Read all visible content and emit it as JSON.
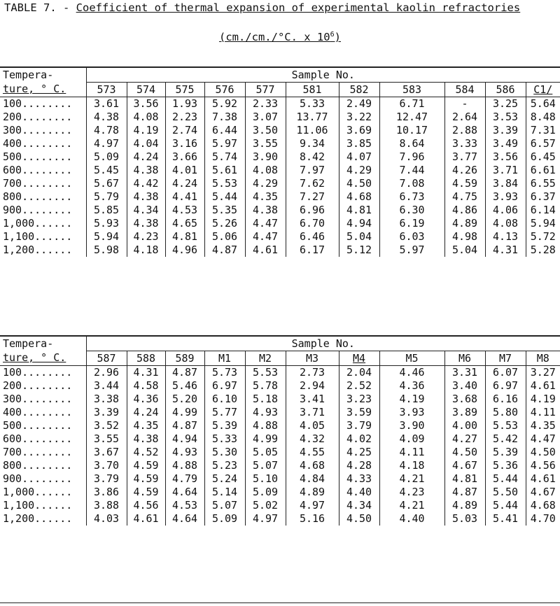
{
  "title": {
    "prefix": "TABLE 7. - ",
    "text": "Coefficient of thermal expansion of experimental kaolin refractories",
    "units_base": "(cm./cm./°C. x 10",
    "units_exp": "6",
    "units_close": ")"
  },
  "tables": [
    {
      "temp_header_line1": "Tempera-",
      "temp_header_line2": "ture, ° C.",
      "sample_header": "Sample No.",
      "columns": [
        "573",
        "574",
        "575",
        "576",
        "577",
        "581",
        "582",
        "583",
        "584",
        "586",
        "C1/"
      ],
      "rows": [
        {
          "temp": "100........",
          "values": [
            "3.61",
            "3.56",
            "1.93",
            "5.92",
            "2.33",
            "5.33",
            "2.49",
            "6.71",
            "-",
            "3.25",
            "5.64"
          ]
        },
        {
          "temp": "200........",
          "values": [
            "4.38",
            "4.08",
            "2.23",
            "7.38",
            "3.07",
            "13.77",
            "3.22",
            "12.47",
            "2.64",
            "3.53",
            "8.48"
          ]
        },
        {
          "temp": "300........",
          "values": [
            "4.78",
            "4.19",
            "2.74",
            "6.44",
            "3.50",
            "11.06",
            "3.69",
            "10.17",
            "2.88",
            "3.39",
            "7.31"
          ]
        },
        {
          "temp": "400........",
          "values": [
            "4.97",
            "4.04",
            "3.16",
            "5.97",
            "3.55",
            "9.34",
            "3.85",
            "8.64",
            "3.33",
            "3.49",
            "6.57"
          ]
        },
        {
          "temp": "500........",
          "values": [
            "5.09",
            "4.24",
            "3.66",
            "5.74",
            "3.90",
            "8.42",
            "4.07",
            "7.96",
            "3.77",
            "3.56",
            "6.45"
          ]
        },
        {
          "temp": "600........",
          "values": [
            "5.45",
            "4.38",
            "4.01",
            "5.61",
            "4.08",
            "7.97",
            "4.29",
            "7.44",
            "4.26",
            "3.71",
            "6.61"
          ]
        },
        {
          "temp": "700........",
          "values": [
            "5.67",
            "4.42",
            "4.24",
            "5.53",
            "4.29",
            "7.62",
            "4.50",
            "7.08",
            "4.59",
            "3.84",
            "6.55"
          ]
        },
        {
          "temp": "800........",
          "values": [
            "5.79",
            "4.38",
            "4.41",
            "5.44",
            "4.35",
            "7.27",
            "4.68",
            "6.73",
            "4.75",
            "3.93",
            "6.37"
          ]
        },
        {
          "temp": "900........",
          "values": [
            "5.85",
            "4.34",
            "4.53",
            "5.35",
            "4.38",
            "6.96",
            "4.81",
            "6.30",
            "4.86",
            "4.06",
            "6.14"
          ]
        },
        {
          "temp": "1,000......",
          "values": [
            "5.93",
            "4.38",
            "4.65",
            "5.26",
            "4.47",
            "6.70",
            "4.94",
            "6.19",
            "4.89",
            "4.08",
            "5.94"
          ]
        },
        {
          "temp": "1,100......",
          "values": [
            "5.94",
            "4.23",
            "4.81",
            "5.06",
            "4.47",
            "6.46",
            "5.04",
            "6.03",
            "4.98",
            "4.13",
            "5.72"
          ]
        },
        {
          "temp": "1,200......",
          "values": [
            "5.98",
            "4.18",
            "4.96",
            "4.87",
            "4.61",
            "6.17",
            "5.12",
            "5.97",
            "5.04",
            "4.31",
            "5.28"
          ]
        }
      ]
    },
    {
      "temp_header_line1": "Tempera-",
      "temp_header_line2": "ture, ° C.",
      "sample_header": "Sample No.",
      "columns": [
        "587",
        "588",
        "589",
        "M1",
        "M2",
        "M3",
        "M4",
        "M5",
        "M6",
        "M7",
        "M8"
      ],
      "rows": [
        {
          "temp": "100........",
          "values": [
            "2.96",
            "4.31",
            "4.87",
            "5.73",
            "5.53",
            "2.73",
            "2.04",
            "4.46",
            "3.31",
            "6.07",
            "3.27"
          ]
        },
        {
          "temp": "200........",
          "values": [
            "3.44",
            "4.58",
            "5.46",
            "6.97",
            "5.78",
            "2.94",
            "2.52",
            "4.36",
            "3.40",
            "6.97",
            "4.61"
          ]
        },
        {
          "temp": "300........",
          "values": [
            "3.38",
            "4.36",
            "5.20",
            "6.10",
            "5.18",
            "3.41",
            "3.23",
            "4.19",
            "3.68",
            "6.16",
            "4.19"
          ]
        },
        {
          "temp": "400........",
          "values": [
            "3.39",
            "4.24",
            "4.99",
            "5.77",
            "4.93",
            "3.71",
            "3.59",
            "3.93",
            "3.89",
            "5.80",
            "4.11"
          ]
        },
        {
          "temp": "500........",
          "values": [
            "3.52",
            "4.35",
            "4.87",
            "5.39",
            "4.88",
            "4.05",
            "3.79",
            "3.90",
            "4.00",
            "5.53",
            "4.35"
          ]
        },
        {
          "temp": "600........",
          "values": [
            "3.55",
            "4.38",
            "4.94",
            "5.33",
            "4.99",
            "4.32",
            "4.02",
            "4.09",
            "4.27",
            "5.42",
            "4.47"
          ]
        },
        {
          "temp": "700........",
          "values": [
            "3.67",
            "4.52",
            "4.93",
            "5.30",
            "5.05",
            "4.55",
            "4.25",
            "4.11",
            "4.50",
            "5.39",
            "4.50"
          ]
        },
        {
          "temp": "800........",
          "values": [
            "3.70",
            "4.59",
            "4.88",
            "5.23",
            "5.07",
            "4.68",
            "4.28",
            "4.18",
            "4.67",
            "5.36",
            "4.56"
          ]
        },
        {
          "temp": "900........",
          "values": [
            "3.79",
            "4.59",
            "4.79",
            "5.24",
            "5.10",
            "4.84",
            "4.33",
            "4.21",
            "4.81",
            "5.44",
            "4.61"
          ]
        },
        {
          "temp": "1,000......",
          "values": [
            "3.86",
            "4.59",
            "4.64",
            "5.14",
            "5.09",
            "4.89",
            "4.40",
            "4.23",
            "4.87",
            "5.50",
            "4.67"
          ]
        },
        {
          "temp": "1,100......",
          "values": [
            "3.88",
            "4.56",
            "4.53",
            "5.07",
            "5.02",
            "4.97",
            "4.34",
            "4.21",
            "4.89",
            "5.44",
            "4.68"
          ]
        },
        {
          "temp": "1,200......",
          "values": [
            "4.03",
            "4.61",
            "4.64",
            "5.09",
            "4.97",
            "5.16",
            "4.50",
            "4.40",
            "5.03",
            "5.41",
            "4.70"
          ]
        }
      ]
    }
  ]
}
